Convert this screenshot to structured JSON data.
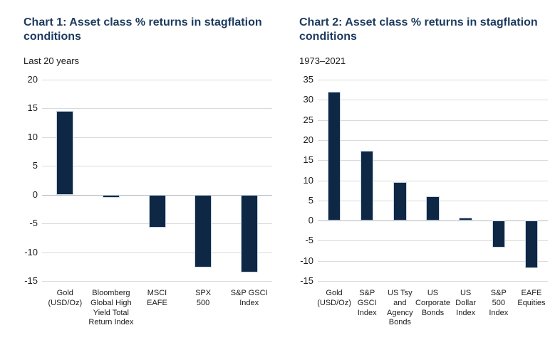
{
  "colors": {
    "bar_fill": "#0d2745",
    "bar_border": "#c6d6e4",
    "title": "#1c3a5e",
    "grid": "#d9d9d9",
    "zero_line": "#b3b9bf",
    "text": "#1a1a1a",
    "background": "#ffffff"
  },
  "chart_data": [
    {
      "type": "bar",
      "title": "Chart 1: Asset class % returns in stagflation conditions",
      "subtitle": "Last 20 years",
      "categories": [
        "Gold (USD/Oz)",
        "Bloomberg Global High Yield Total Return Index",
        "MSCI EAFE",
        "SPX 500",
        "S&P GSCI Index"
      ],
      "category_lines": [
        [
          "Gold",
          "(USD/Oz)"
        ],
        [
          "Bloomberg",
          "Global High",
          "Yield Total",
          "Return Index"
        ],
        [
          "MSCI",
          "EAFE"
        ],
        [
          "SPX",
          "500"
        ],
        [
          "S&P GSCI",
          "Index"
        ]
      ],
      "values": [
        14.6,
        -0.5,
        -5.7,
        -12.6,
        -13.5
      ],
      "xlabel": "",
      "ylabel": "",
      "ylim": [
        -15,
        20
      ],
      "ytick_step": 5,
      "grid": true,
      "legend": "none"
    },
    {
      "type": "bar",
      "title": "Chart 2: Asset class % returns in stagflation conditions",
      "subtitle": "1973–2021",
      "categories": [
        "Gold (USD/Oz)",
        "S&P GSCI Index",
        "US Tsy and Agency Bonds",
        "US Corporate Bonds",
        "US Dollar Index",
        "S&P 500 Index",
        "EAFE Equities"
      ],
      "category_lines": [
        [
          "Gold",
          "(USD/Oz)"
        ],
        [
          "S&P",
          "GSCI",
          "Index"
        ],
        [
          "US Tsy",
          "and",
          "Agency",
          "Bonds"
        ],
        [
          "US",
          "Corporate",
          "Bonds"
        ],
        [
          "US",
          "Dollar",
          "Index"
        ],
        [
          "S&P",
          "500",
          "Index"
        ],
        [
          "EAFE",
          "Equities"
        ]
      ],
      "values": [
        32,
        17.3,
        9.5,
        6,
        0.8,
        -6.7,
        -11.8
      ],
      "xlabel": "",
      "ylabel": "",
      "ylim": [
        -15,
        35
      ],
      "ytick_step": 5,
      "grid": true,
      "legend": "none"
    }
  ]
}
